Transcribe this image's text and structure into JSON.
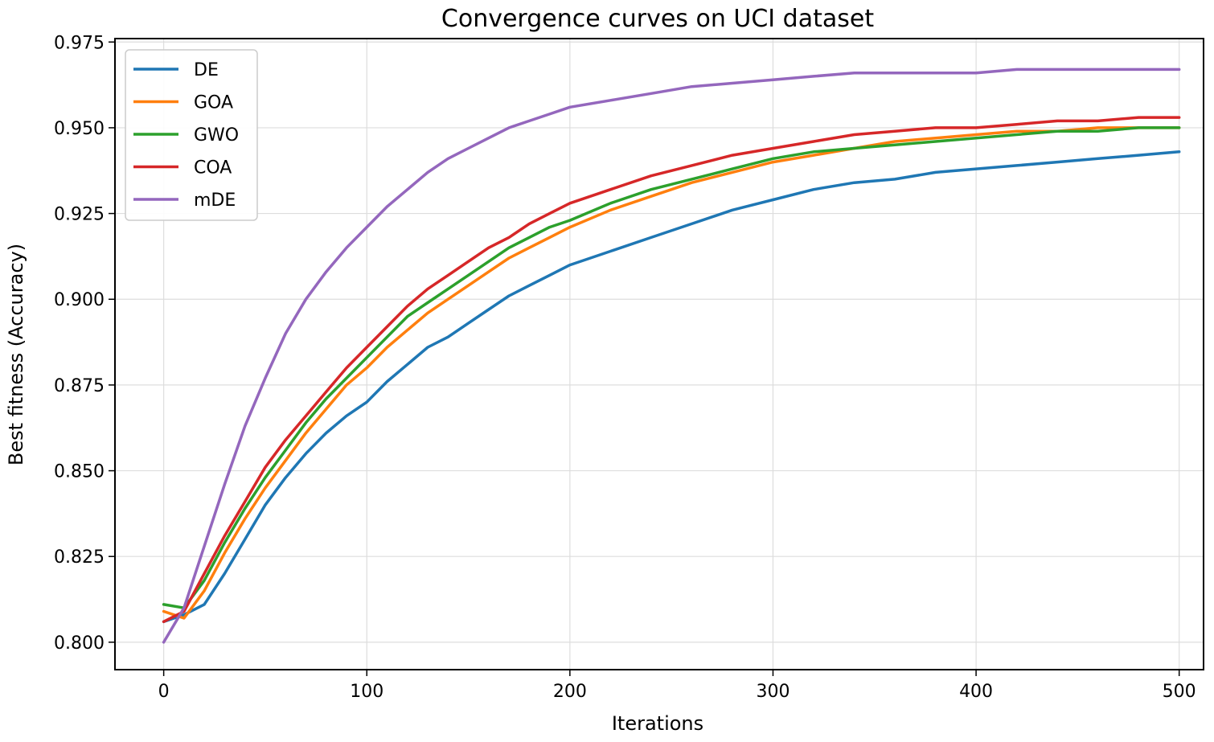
{
  "chart_data": {
    "type": "line",
    "title": "Convergence curves on UCI dataset",
    "xlabel": "Iterations",
    "ylabel": "Best fitness (Accuracy)",
    "xlim": [
      -24,
      512
    ],
    "ylim": [
      0.792,
      0.976
    ],
    "xticks": [
      0,
      100,
      200,
      300,
      400,
      500
    ],
    "yticks": [
      0.8,
      0.825,
      0.85,
      0.875,
      0.9,
      0.925,
      0.95,
      0.975
    ],
    "xtick_labels": [
      "0",
      "100",
      "200",
      "300",
      "400",
      "500"
    ],
    "ytick_labels": [
      "0.800",
      "0.825",
      "0.850",
      "0.875",
      "0.900",
      "0.925",
      "0.950",
      "0.975"
    ],
    "grid": true,
    "legend_position": "top-left",
    "x": [
      0,
      10,
      20,
      30,
      40,
      50,
      60,
      70,
      80,
      90,
      100,
      110,
      120,
      130,
      140,
      150,
      160,
      170,
      180,
      190,
      200,
      220,
      240,
      260,
      280,
      300,
      320,
      340,
      360,
      380,
      400,
      420,
      440,
      460,
      480,
      500
    ],
    "series": [
      {
        "name": "DE",
        "color": "#1f77b4",
        "values": [
          0.806,
          0.808,
          0.811,
          0.82,
          0.83,
          0.84,
          0.848,
          0.855,
          0.861,
          0.866,
          0.87,
          0.876,
          0.881,
          0.886,
          0.889,
          0.893,
          0.897,
          0.901,
          0.904,
          0.907,
          0.91,
          0.914,
          0.918,
          0.922,
          0.926,
          0.929,
          0.932,
          0.934,
          0.935,
          0.937,
          0.938,
          0.939,
          0.94,
          0.941,
          0.942,
          0.943
        ]
      },
      {
        "name": "GOA",
        "color": "#ff7f0e",
        "values": [
          0.809,
          0.807,
          0.815,
          0.826,
          0.836,
          0.845,
          0.853,
          0.861,
          0.868,
          0.875,
          0.88,
          0.886,
          0.891,
          0.896,
          0.9,
          0.904,
          0.908,
          0.912,
          0.915,
          0.918,
          0.921,
          0.926,
          0.93,
          0.934,
          0.937,
          0.94,
          0.942,
          0.944,
          0.946,
          0.947,
          0.948,
          0.949,
          0.949,
          0.95,
          0.95,
          0.95
        ]
      },
      {
        "name": "GWO",
        "color": "#2ca02c",
        "values": [
          0.811,
          0.81,
          0.818,
          0.829,
          0.839,
          0.848,
          0.856,
          0.864,
          0.871,
          0.877,
          0.883,
          0.889,
          0.895,
          0.899,
          0.903,
          0.907,
          0.911,
          0.915,
          0.918,
          0.921,
          0.923,
          0.928,
          0.932,
          0.935,
          0.938,
          0.941,
          0.943,
          0.944,
          0.945,
          0.946,
          0.947,
          0.948,
          0.949,
          0.949,
          0.95,
          0.95
        ]
      },
      {
        "name": "COA",
        "color": "#d62728",
        "values": [
          0.806,
          0.809,
          0.82,
          0.831,
          0.841,
          0.851,
          0.859,
          0.866,
          0.873,
          0.88,
          0.886,
          0.892,
          0.898,
          0.903,
          0.907,
          0.911,
          0.915,
          0.918,
          0.922,
          0.925,
          0.928,
          0.932,
          0.936,
          0.939,
          0.942,
          0.944,
          0.946,
          0.948,
          0.949,
          0.95,
          0.95,
          0.951,
          0.952,
          0.952,
          0.953,
          0.953
        ]
      },
      {
        "name": "mDE",
        "color": "#9467bd",
        "values": [
          0.8,
          0.81,
          0.828,
          0.846,
          0.863,
          0.877,
          0.89,
          0.9,
          0.908,
          0.915,
          0.921,
          0.927,
          0.932,
          0.937,
          0.941,
          0.944,
          0.947,
          0.95,
          0.952,
          0.954,
          0.956,
          0.958,
          0.96,
          0.962,
          0.963,
          0.964,
          0.965,
          0.966,
          0.966,
          0.966,
          0.966,
          0.967,
          0.967,
          0.967,
          0.967,
          0.967
        ]
      }
    ]
  }
}
